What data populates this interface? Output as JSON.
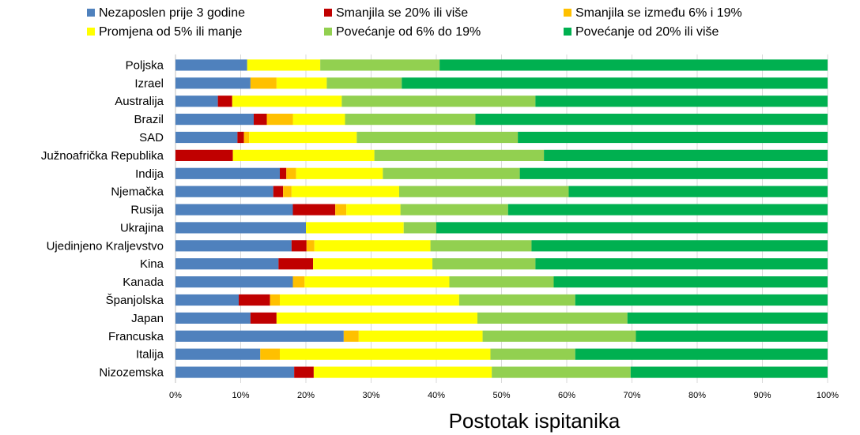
{
  "chart_data": {
    "type": "bar",
    "orientation": "horizontal",
    "stacked": "percent",
    "xlabel": "Postotak ispitanika",
    "xlim": [
      0,
      100
    ],
    "x_ticks": [
      "0%",
      "10%",
      "20%",
      "30%",
      "40%",
      "50%",
      "60%",
      "70%",
      "80%",
      "90%",
      "100%"
    ],
    "grid": "vertical",
    "legend_position": "top",
    "categories": [
      "Poljska",
      "Izrael",
      "Australija",
      "Brazil",
      "SAD",
      "Južnoafrička Republika",
      "Indija",
      "Njemačka",
      "Rusija",
      "Ukrajina",
      "Ujedinjeno Kraljevstvo",
      "Kina",
      "Kanada",
      "Španjolska",
      "Japan",
      "Francuska",
      "Italija",
      "Nizozemska"
    ],
    "series": [
      {
        "name": "Nezaposlen prije 3 godine",
        "color": "#4f81bd",
        "values": [
          11.0,
          11.5,
          6.5,
          12.0,
          9.5,
          0.0,
          16.0,
          15.0,
          18.0,
          20.0,
          17.8,
          15.8,
          18.0,
          9.7,
          11.5,
          25.8,
          13.0,
          18.2
        ]
      },
      {
        "name": "Smanjila se 20% ili više",
        "color": "#c00000",
        "values": [
          0.0,
          0.0,
          2.2,
          2.0,
          1.0,
          8.8,
          1.0,
          1.5,
          6.5,
          0.0,
          2.3,
          5.3,
          0.0,
          4.8,
          4.0,
          0.0,
          0.0,
          3.0
        ]
      },
      {
        "name": "Smanjila se između 6% i 19%",
        "color": "#ffc000",
        "values": [
          0.0,
          4.0,
          0.0,
          4.0,
          0.8,
          0.0,
          1.5,
          1.3,
          1.7,
          0.0,
          1.2,
          0.0,
          1.8,
          1.5,
          0.0,
          2.3,
          3.0,
          0.0
        ]
      },
      {
        "name": "Promjena od 5% ili manje",
        "color": "#ffff00",
        "values": [
          11.2,
          7.7,
          16.8,
          8.0,
          16.5,
          21.7,
          13.3,
          16.5,
          8.3,
          15.0,
          17.8,
          18.3,
          22.2,
          27.5,
          30.8,
          19.0,
          32.3,
          27.3
        ]
      },
      {
        "name": "Povećanje od 6% do 19%",
        "color": "#92d050",
        "values": [
          18.3,
          11.5,
          29.7,
          20.0,
          24.7,
          26.0,
          21.0,
          26.0,
          16.5,
          5.0,
          15.5,
          15.8,
          16.0,
          17.8,
          23.0,
          23.5,
          13.0,
          21.3
        ]
      },
      {
        "name": "Povećanje od 20% ili više",
        "color": "#00b050",
        "values": [
          59.5,
          65.3,
          44.8,
          54.0,
          47.5,
          43.5,
          47.2,
          39.7,
          49.0,
          60.0,
          45.4,
          44.8,
          42.0,
          38.7,
          30.7,
          29.4,
          38.7,
          30.2
        ]
      }
    ]
  }
}
